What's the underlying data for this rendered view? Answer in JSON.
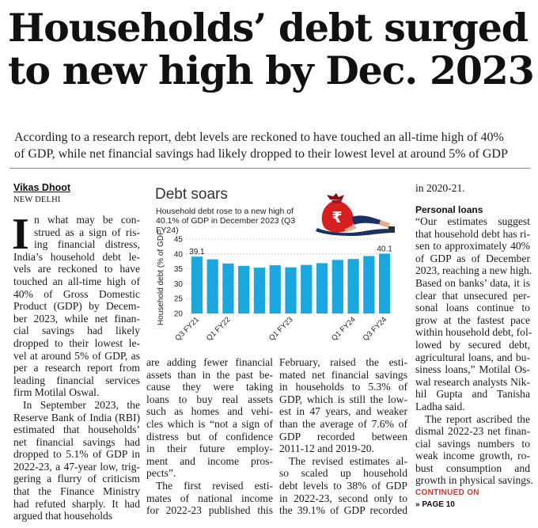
{
  "headline": {
    "line1": "Households’ debt surged",
    "line2": "to new high by Dec. 2023"
  },
  "deck": {
    "line1": "According to a research report, debt levels are reckoned to have touched an all-time high of 40%",
    "line2": "of GDP, while net financial savings had likely dropped to their lowest level at around 5% of GDP"
  },
  "byline": "Vikas Dhoot",
  "dateline": "NEW DELHI",
  "dropcap": "I",
  "columns": {
    "col1": [
      "n what may be con-",
      "strued as a sign of ris-",
      "ing financial distress,",
      "India’s household debt le-",
      "vels are reckoned to have",
      "touched an all-time high of",
      "40% of Gross Domestic",
      "Product (GDP) by Decem-",
      "ber 2023, while net finan-",
      "cial savings had likely",
      "dropped to their lowest le-",
      "vel at around 5% of GDP, as",
      "per a research report from",
      "leading financial services",
      "firm Motilal Oswal.",
      "In September 2023, the",
      "Reserve Bank of India (RBI)",
      "estimated that households’",
      "net financial savings had",
      "dropped to 5.1% of GDP in",
      "2022-23, a 47-year low, trig-",
      "gering a flurry of criticism",
      "that the Finance Ministry",
      "had refuted sharply. It had",
      "argued that households"
    ],
    "col2": [
      "are adding fewer financial",
      "assets than in the past be-",
      "cause they were taking",
      "loans to buy real assets",
      "such as homes and vehi-",
      "cles which is “not a sign of",
      "distress but of confidence",
      "in their future employ-",
      "ment and income pros-",
      "pects”.",
      "The first revised esti-",
      "mates of national income",
      "for 2022-23 published this"
    ],
    "col3": [
      "February, raised the esti-",
      "mated net financial savings",
      "in households to 5.3% of",
      "GDP, which is still the low-",
      "est in 47 years, and weaker",
      "than the average of 7.6% of",
      "GDP recorded between",
      "2011-12 and 2019-20.",
      "The revised estimates al-",
      "so scaled up household",
      "debt levels to 38% of GDP",
      "in 2022-23, second only to",
      "the 39.1% of GDP recorded"
    ],
    "col4_top": "in 2020-21.",
    "col4_subhead": "Personal loans",
    "col4": [
      "“Our estimates suggest",
      "that household debt has ri-",
      "sen to approximately 40%",
      "of GDP as of December",
      "2023, reaching a new high.",
      "Based on banks’ data, it is",
      "clear that unsecured per-",
      "sonal loans continue to",
      "grow at the fastest pace",
      "within household debt, fol-",
      "lowed by secured debt,",
      "agricultural loans, and bu-",
      "siness loans,” Motilal Os-",
      "wal research analysts Nik-",
      "hil Gupta and Tanisha",
      "Ladha said.",
      "The report ascribed the",
      "dismal 2022-23 net finan-",
      "cial savings numbers to",
      "weak income growth, ro-",
      "bust consumption and",
      "growth in physical savings."
    ],
    "continued": "CONTINUED ON",
    "continued_page": "» PAGE 10"
  },
  "chart": {
    "title": "Debt soars",
    "subtitle_line1": "Household debt rose to a new high of",
    "subtitle_line2": "40.1% of GDP in December 2023 (Q3 FY24)",
    "bar_color": "#1aa7df",
    "icon": "rupee-bag-icon"
  },
  "chart_data": {
    "type": "bar",
    "ylabel": "Household debt (% of GDP)",
    "ylim": [
      20,
      45
    ],
    "yticks": [
      20,
      25,
      30,
      35,
      40,
      45
    ],
    "categories": [
      "Q3 FY21",
      "Q4 FY21",
      "Q1 FY22",
      "Q2 FY22",
      "Q3 FY22",
      "Q4 FY22",
      "Q1 FY23",
      "Q2 FY23",
      "Q3 FY23",
      "Q4 FY23",
      "Q1 FY24",
      "Q2 FY24",
      "Q3 FY24"
    ],
    "tick_labels": [
      "Q3 FY21",
      "",
      "Q1 FY22",
      "",
      "",
      "",
      "Q1 FY23",
      "",
      "",
      "",
      "Q1 FY24",
      "",
      "Q3 FY24"
    ],
    "values": [
      39.1,
      38.2,
      36.8,
      36.0,
      35.4,
      36.2,
      35.5,
      36.3,
      36.9,
      38.0,
      38.3,
      39.3,
      40.1
    ],
    "data_labels": [
      "39.1",
      "",
      "",
      "",
      "",
      "",
      "",
      "",
      "",
      "",
      "",
      "",
      "40.1"
    ]
  }
}
